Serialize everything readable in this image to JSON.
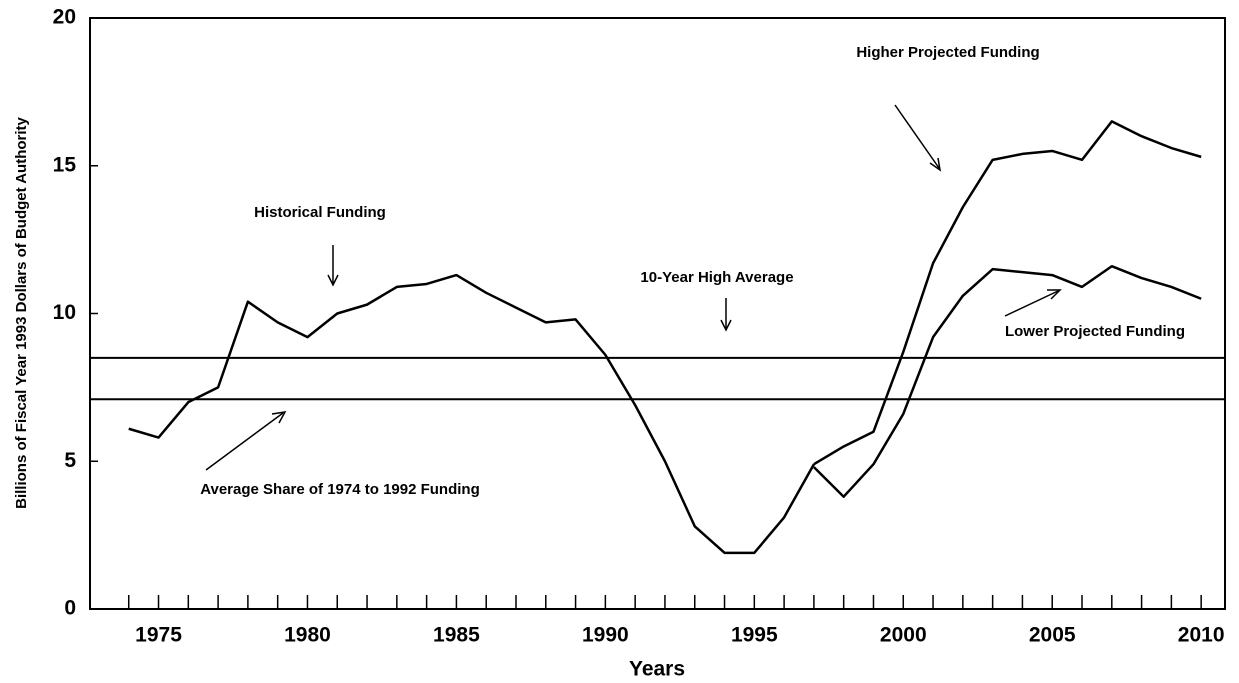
{
  "chart_data": {
    "type": "line",
    "x_label": "Years",
    "y_label": "Billions of Fiscal Year 1993 Dollars of Budget Authority",
    "x": [
      1974,
      1975,
      1976,
      1977,
      1978,
      1979,
      1980,
      1981,
      1982,
      1983,
      1984,
      1985,
      1986,
      1987,
      1988,
      1989,
      1990,
      1991,
      1992,
      1993,
      1994,
      1995,
      1996,
      1997,
      1998,
      1999,
      2000,
      2001,
      2002,
      2003,
      2004,
      2005,
      2006,
      2007,
      2008,
      2009,
      2010
    ],
    "series": [
      {
        "name": "Historical Funding",
        "color": "#000000",
        "values": [
          6.1,
          5.8,
          7.0,
          7.5,
          10.4,
          9.7,
          9.2,
          10.0,
          10.3,
          10.9,
          11.0,
          11.3,
          10.7,
          10.2,
          9.7,
          9.8,
          8.6,
          6.9,
          5.0,
          2.8,
          1.9,
          1.9,
          3.1,
          4.9,
          null,
          null,
          null,
          null,
          null,
          null,
          null,
          null,
          null,
          null,
          null,
          null,
          null
        ]
      },
      {
        "name": "Higher Projected Funding",
        "color": "#000000",
        "values": [
          null,
          null,
          null,
          null,
          null,
          null,
          null,
          null,
          null,
          null,
          null,
          null,
          null,
          null,
          null,
          null,
          null,
          null,
          null,
          null,
          null,
          null,
          null,
          4.9,
          5.5,
          6.0,
          8.7,
          11.7,
          13.6,
          15.2,
          15.4,
          15.5,
          15.2,
          16.5,
          16.0,
          15.6,
          15.3
        ]
      },
      {
        "name": "Lower Projected Funding",
        "color": "#000000",
        "values": [
          null,
          null,
          null,
          null,
          null,
          null,
          null,
          null,
          null,
          null,
          null,
          null,
          null,
          null,
          null,
          null,
          null,
          null,
          null,
          null,
          null,
          null,
          null,
          4.8,
          3.8,
          4.9,
          6.6,
          9.2,
          10.6,
          11.5,
          11.4,
          11.3,
          10.9,
          11.6,
          11.2,
          10.9,
          10.5
        ]
      }
    ],
    "reference_lines": [
      {
        "label": "10-Year High Average",
        "value": 8.5
      },
      {
        "label": "Average Share of 1974 to 1992 Funding",
        "value": 7.1
      }
    ],
    "xlim": [
      1972.7,
      2010.8
    ],
    "xticks": [
      1975,
      1980,
      1985,
      1990,
      1995,
      2000,
      2005,
      2010
    ],
    "ylim": [
      0,
      20
    ],
    "yticks": [
      0,
      5,
      10,
      15,
      20
    ],
    "grid": false
  }
}
